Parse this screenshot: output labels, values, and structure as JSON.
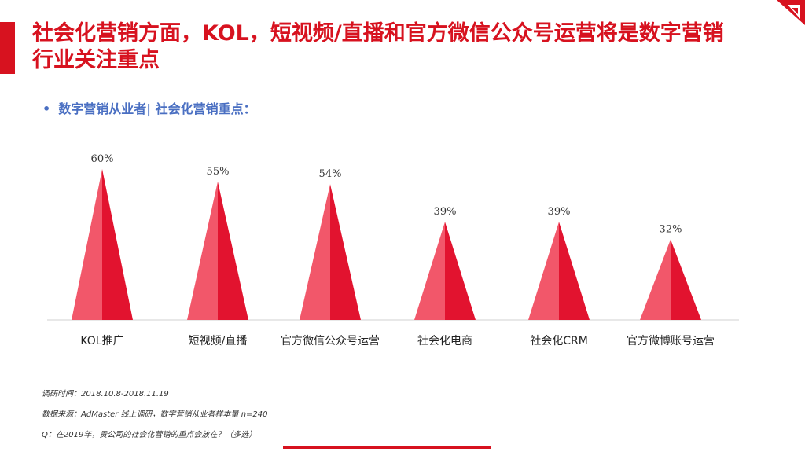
{
  "title": "社会化营销方面，KOL，短视频/直播和官方微信公众号运营将是数字营销行业关注重点",
  "subtitle": "数字营销从业者| 社会化营销重点：",
  "bullet": "•",
  "colors": {
    "accent": "#d7121f",
    "cone_light": "#f2576a",
    "cone_dark": "#e2132f",
    "subtitle": "#4a6fc2"
  },
  "chart_data": {
    "type": "bar",
    "categories": [
      "KOL推广",
      "短视频/直播",
      "官方微信公众号运营",
      "社会化电商",
      "社会化CRM",
      "官方微博账号运营"
    ],
    "values": [
      60,
      55,
      54,
      39,
      39,
      32
    ],
    "value_labels": [
      "60%",
      "55%",
      "54%",
      "39%",
      "39%",
      "32%"
    ],
    "ylim": [
      0,
      60
    ],
    "grid": false,
    "marker": "cone"
  },
  "notes": {
    "period": "调研时间：2018.10.8-2018.11.19",
    "source": "数据来源：AdMaster 线上调研，数字营销从业者样本量 n=240",
    "question": "Q：在2019年，贵公司的社会化营销的重点会放在？（多选）"
  }
}
